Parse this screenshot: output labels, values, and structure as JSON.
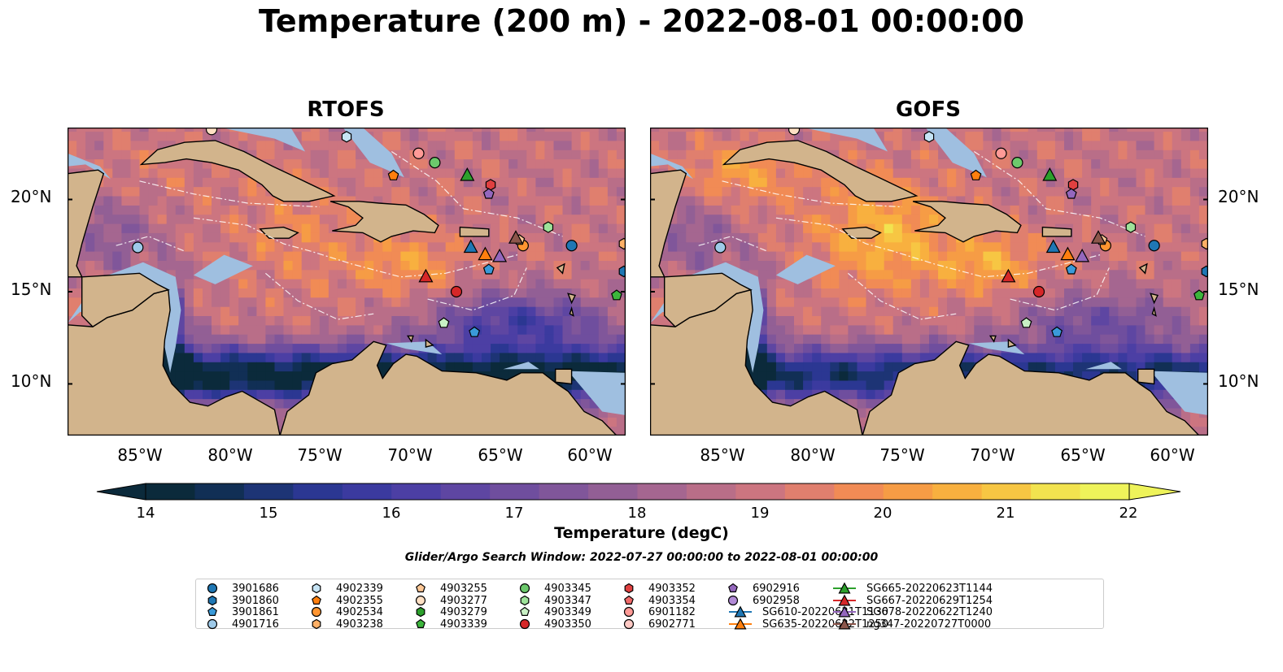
{
  "title": "Temperature (200 m) - 2022-08-01 00:00:00",
  "panels": [
    {
      "title": "RTOFS"
    },
    {
      "title": "GOFS"
    }
  ],
  "lat_labels": [
    "20°N",
    "15°N",
    "10°N"
  ],
  "lon_labels": [
    "85°W",
    "80°W",
    "75°W",
    "70°W",
    "65°W",
    "60°W"
  ],
  "extent": {
    "lon": [
      -89,
      -58
    ],
    "lat": [
      7.2,
      23.9
    ]
  },
  "colorbar": {
    "label": "Temperature (degC)",
    "ticks": [
      "14",
      "15",
      "16",
      "17",
      "18",
      "19",
      "20",
      "21",
      "22"
    ],
    "vmin": 14,
    "vmax": 22,
    "step": 0.5,
    "extend": "both",
    "colors": [
      "#0b2a3b",
      "#112f55",
      "#1d3475",
      "#2b3792",
      "#3b3a9f",
      "#4c3fa4",
      "#5e46a2",
      "#6f4e9e",
      "#80569a",
      "#925f95",
      "#a56690",
      "#b96e88",
      "#cc7580",
      "#e07f6e",
      "#f18b55",
      "#f69c45",
      "#f8b03f",
      "#f7c643",
      "#f2e34f",
      "#eef35a"
    ]
  },
  "search_window": "Glider/Argo Search Window: 2022-07-27 00:00:00 to 2022-08-01 00:00:00",
  "legend": [
    {
      "label": "3901686",
      "marker": "circle",
      "color": "#1f77b4"
    },
    {
      "label": "3901860",
      "marker": "hexagon",
      "color": "#1f77b4"
    },
    {
      "label": "3901861",
      "marker": "pentagon",
      "color": "#3a9ad9"
    },
    {
      "label": "4901716",
      "marker": "circle",
      "color": "#9ecae9"
    },
    {
      "label": "4902339",
      "marker": "hexagon",
      "color": "#c6e4f5"
    },
    {
      "label": "4902355",
      "marker": "pentagon",
      "color": "#ff7f0e"
    },
    {
      "label": "4902534",
      "marker": "circle",
      "color": "#ff9530"
    },
    {
      "label": "4903238",
      "marker": "hexagon",
      "color": "#ffb066"
    },
    {
      "label": "4903255",
      "marker": "pentagon",
      "color": "#ffc896"
    },
    {
      "label": "4903277",
      "marker": "circle",
      "color": "#ffe0c4"
    },
    {
      "label": "4903279",
      "marker": "hexagon",
      "color": "#2ca02c"
    },
    {
      "label": "4903339",
      "marker": "pentagon",
      "color": "#3cb53c"
    },
    {
      "label": "4903345",
      "marker": "circle",
      "color": "#6cc96c"
    },
    {
      "label": "4903347",
      "marker": "hexagon",
      "color": "#9ee29a"
    },
    {
      "label": "4903349",
      "marker": "pentagon",
      "color": "#c8f0c4"
    },
    {
      "label": "4903350",
      "marker": "circle",
      "color": "#d62728"
    },
    {
      "label": "4903352",
      "marker": "hexagon",
      "color": "#e04040"
    },
    {
      "label": "4903354",
      "marker": "pentagon",
      "color": "#f06a6a"
    },
    {
      "label": "6901182",
      "marker": "circle",
      "color": "#ff9a96"
    },
    {
      "label": "6902771",
      "marker": "circle",
      "color": "#ffc9c4"
    },
    {
      "label": "6902916",
      "marker": "pentagon",
      "color": "#9467bd"
    },
    {
      "label": "6902958",
      "marker": "circle",
      "color": "#b18ad6"
    },
    {
      "label": "SG610-20220621T1130",
      "marker": "triangle-line",
      "color": "#1f77b4"
    },
    {
      "label": "SG635-20220622T1250",
      "marker": "triangle-line",
      "color": "#ff7f0e"
    },
    {
      "label": "SG665-20220623T1144",
      "marker": "triangle-line",
      "color": "#2ca02c"
    },
    {
      "label": "SG667-20220629T1254",
      "marker": "triangle-line",
      "color": "#d62728"
    },
    {
      "label": "SG678-20220622T1240",
      "marker": "triangle-line",
      "color": "#9467bd"
    },
    {
      "label": "ng347-20220727T0000",
      "marker": "triangle-line",
      "color": "#8c564b"
    }
  ],
  "map_markers": [
    {
      "id": "3901686",
      "lon": -61.0,
      "lat": 17.5
    },
    {
      "id": "3901860",
      "lon": -58.1,
      "lat": 16.1
    },
    {
      "id": "3901861",
      "lon": -65.6,
      "lat": 16.2
    },
    {
      "id": "3901861",
      "lon": -66.4,
      "lat": 12.8
    },
    {
      "id": "4901716",
      "lon": -85.1,
      "lat": 17.4
    },
    {
      "id": "4902339",
      "lon": -73.5,
      "lat": 23.4
    },
    {
      "id": "4902355",
      "lon": -70.9,
      "lat": 21.3
    },
    {
      "id": "4902534",
      "lon": -63.7,
      "lat": 17.5
    },
    {
      "id": "4903238",
      "lon": -58.1,
      "lat": 17.6
    },
    {
      "id": "4903255",
      "lon": -63.9,
      "lat": 17.8
    },
    {
      "id": "4903277",
      "lon": -81.0,
      "lat": 23.8
    },
    {
      "id": "4903339",
      "lon": -58.5,
      "lat": 14.8
    },
    {
      "id": "4903345",
      "lon": -68.6,
      "lat": 22.0
    },
    {
      "id": "4903347",
      "lon": -62.3,
      "lat": 18.5
    },
    {
      "id": "4903349",
      "lon": -68.1,
      "lat": 13.3
    },
    {
      "id": "4903350",
      "lon": -67.4,
      "lat": 15.0
    },
    {
      "id": "4903352",
      "lon": -65.5,
      "lat": 20.8
    },
    {
      "id": "6901182",
      "lon": -69.5,
      "lat": 22.5
    },
    {
      "id": "6902916",
      "lon": -65.6,
      "lat": 20.3
    },
    {
      "id": "SG610-20220621T1130",
      "lon": -66.6,
      "lat": 17.4
    },
    {
      "id": "SG635-20220622T1250",
      "lon": -65.8,
      "lat": 17.0
    },
    {
      "id": "SG665-20220623T1144",
      "lon": -66.8,
      "lat": 21.3
    },
    {
      "id": "SG667-20220629T1254",
      "lon": -69.1,
      "lat": 15.8
    },
    {
      "id": "SG678-20220622T1240",
      "lon": -65.0,
      "lat": 16.9
    },
    {
      "id": "ng347-20220727T0000",
      "lon": -64.1,
      "lat": 17.9
    }
  ],
  "land_color": "#d2b48c",
  "shelf_color": "#9fbfe0"
}
